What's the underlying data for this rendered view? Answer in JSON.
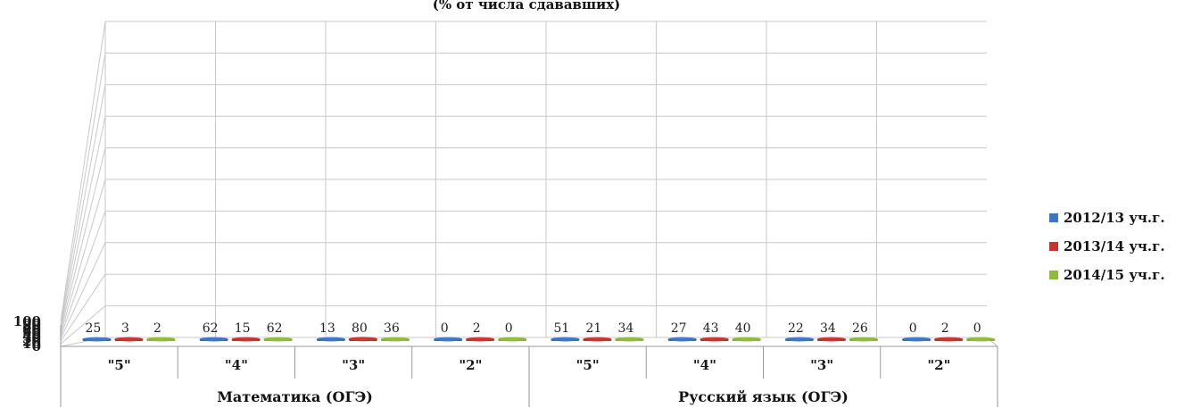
{
  "chart_data": {
    "type": "bar",
    "title": "(% от числа сдававших)",
    "ylim": [
      0,
      100
    ],
    "yticks": [
      0,
      10,
      20,
      30,
      40,
      50,
      60,
      70,
      80,
      90,
      100
    ],
    "groups": [
      {
        "label": "Математика  (ОГЭ)",
        "categories": [
          "\"5\"",
          "\"4\"",
          "\"3\"",
          "\"2\""
        ]
      },
      {
        "label": "Русский язык (ОГЭ)",
        "categories": [
          "\"5\"",
          "\"4\"",
          "\"3\"",
          "\"2\""
        ]
      }
    ],
    "series": [
      {
        "name": "2012/13 уч.г.",
        "color": "#3c74c6",
        "values": [
          25,
          62,
          13,
          0,
          51,
          27,
          22,
          0
        ]
      },
      {
        "name": "2013/14 уч.г.",
        "color": "#c8332d",
        "values": [
          3,
          15,
          80,
          2,
          21,
          43,
          34,
          2
        ]
      },
      {
        "name": "2014/15 уч.г.",
        "color": "#8fba3a",
        "values": [
          2,
          62,
          36,
          0,
          34,
          40,
          26,
          0
        ]
      }
    ],
    "legend_position": "right",
    "grid": true
  }
}
